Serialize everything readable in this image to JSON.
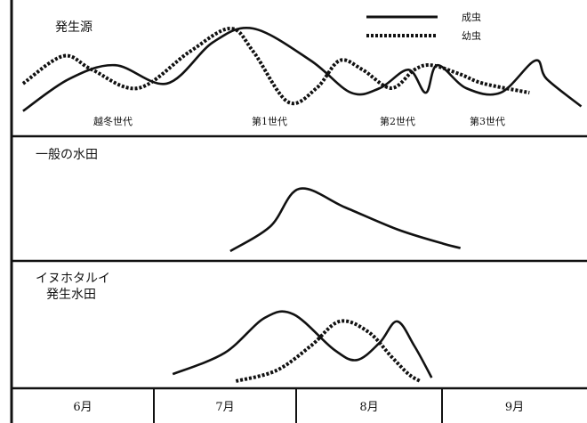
{
  "chart_data": {
    "type": "line",
    "title": "",
    "x_axis": {
      "categories": [
        "6月",
        "7月",
        "8月",
        "9月"
      ]
    },
    "legend": [
      {
        "name": "成虫",
        "style": "solid"
      },
      {
        "name": "幼虫",
        "style": "dotted"
      }
    ],
    "panels": [
      {
        "label_lines": [
          "発生源"
        ],
        "generation_labels": [
          "越冬世代",
          "第1世代",
          "第2世代",
          "第3世代"
        ],
        "series": [
          {
            "name": "成虫",
            "style": "solid",
            "x": [
              0.02,
              0.1,
              0.18,
              0.27,
              0.35,
              0.42,
              0.52,
              0.59,
              0.64,
              0.69,
              0.72,
              0.74,
              0.79,
              0.85,
              0.91,
              0.93,
              0.99
            ],
            "y": [
              0.1,
              0.45,
              0.6,
              0.4,
              0.85,
              1.0,
              0.65,
              0.3,
              0.35,
              0.55,
              0.3,
              0.6,
              0.35,
              0.3,
              0.65,
              0.45,
              0.15
            ]
          },
          {
            "name": "幼虫",
            "style": "dotted",
            "x": [
              0.02,
              0.09,
              0.14,
              0.22,
              0.31,
              0.38,
              0.42,
              0.48,
              0.53,
              0.57,
              0.61,
              0.66,
              0.7,
              0.73,
              0.78,
              0.82,
              0.9
            ],
            "y": [
              0.4,
              0.7,
              0.55,
              0.35,
              0.75,
              1.0,
              0.75,
              0.2,
              0.35,
              0.65,
              0.55,
              0.35,
              0.55,
              0.6,
              0.5,
              0.4,
              0.3
            ]
          }
        ]
      },
      {
        "label_lines": [
          "一般の水田"
        ],
        "series": [
          {
            "name": "成虫",
            "style": "solid",
            "x": [
              0.38,
              0.45,
              0.5,
              0.58,
              0.67,
              0.75,
              0.78
            ],
            "y": [
              0.0,
              0.4,
              1.0,
              0.7,
              0.35,
              0.12,
              0.05
            ]
          }
        ]
      },
      {
        "label_lines": [
          "イヌホタルイ",
          "発生水田"
        ],
        "series": [
          {
            "name": "成虫",
            "style": "solid",
            "x": [
              0.28,
              0.37,
              0.44,
              0.49,
              0.56,
              0.6,
              0.64,
              0.67,
              0.7,
              0.73
            ],
            "y": [
              0.1,
              0.4,
              0.9,
              0.95,
              0.45,
              0.3,
              0.55,
              0.85,
              0.5,
              0.05
            ]
          },
          {
            "name": "幼虫",
            "style": "dotted",
            "x": [
              0.39,
              0.46,
              0.52,
              0.57,
              0.62,
              0.66,
              0.69,
              0.71
            ],
            "y": [
              0.0,
              0.15,
              0.5,
              0.85,
              0.7,
              0.35,
              0.1,
              0.0
            ]
          }
        ]
      }
    ]
  }
}
